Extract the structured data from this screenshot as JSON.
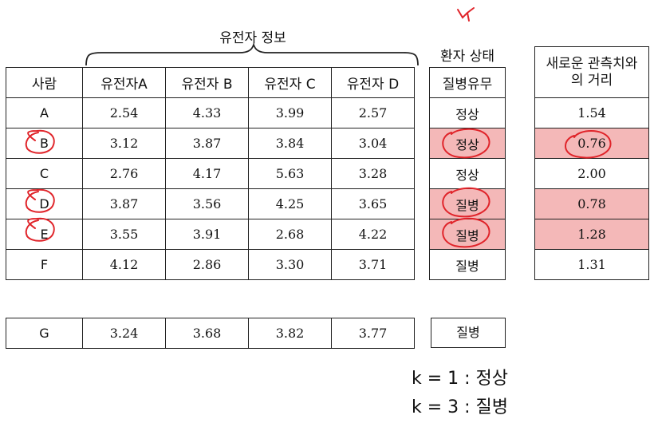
{
  "brace_label": "유전자 정보",
  "status_header": "환자 상태",
  "distance_header_line1": "새로운 관측치와",
  "distance_header_line2": "의 거리",
  "columns": [
    "사람",
    "유전자A",
    "유전자 B",
    "유전자 C",
    "유전자 D"
  ],
  "status_column": "질병유무",
  "rows": [
    {
      "person": "A",
      "a": "2.54",
      "b": "4.33",
      "c": "3.99",
      "d": "2.57",
      "status": "정상",
      "distance": "1.54",
      "highlight": false
    },
    {
      "person": "B",
      "a": "3.12",
      "b": "3.87",
      "c": "3.84",
      "d": "3.04",
      "status": "정상",
      "distance": "0.76",
      "highlight": true
    },
    {
      "person": "C",
      "a": "2.76",
      "b": "4.17",
      "c": "5.63",
      "d": "3.28",
      "status": "정상",
      "distance": "2.00",
      "highlight": false
    },
    {
      "person": "D",
      "a": "3.87",
      "b": "3.56",
      "c": "4.25",
      "d": "3.65",
      "status": "질병",
      "distance": "0.78",
      "highlight": true
    },
    {
      "person": "E",
      "a": "3.55",
      "b": "3.91",
      "c": "2.68",
      "d": "4.22",
      "status": "질병",
      "distance": "1.28",
      "highlight": true
    },
    {
      "person": "F",
      "a": "4.12",
      "b": "2.86",
      "c": "3.30",
      "d": "3.71",
      "status": "질병",
      "distance": "1.31",
      "highlight": false
    }
  ],
  "new_obs": {
    "person": "G",
    "a": "3.24",
    "b": "3.68",
    "c": "3.82",
    "d": "3.77",
    "status": "질병"
  },
  "result_k1": "k = 1 : 정상",
  "result_k3": "k = 3 : 질병",
  "colors": {
    "highlight": "#f4b8b8",
    "annotation": "#e0242a"
  }
}
